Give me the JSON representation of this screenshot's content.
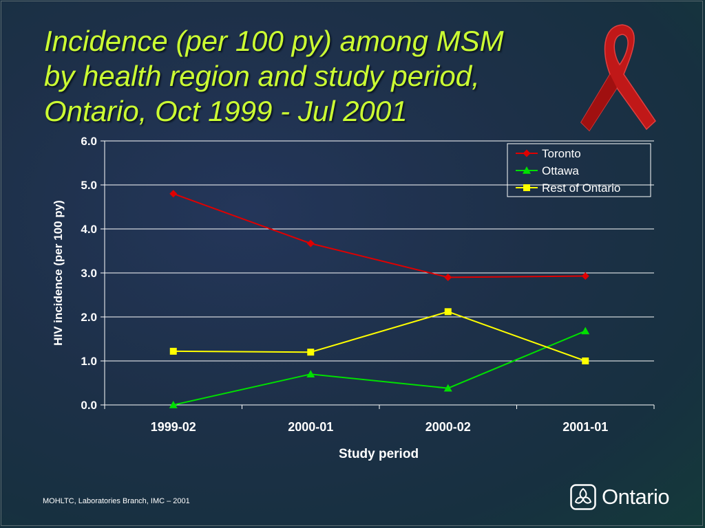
{
  "title_lines": [
    "Incidence (per 100 py) among MSM",
    "by health region and study period,",
    "Ontario, Oct 1999 - Jul 2001"
  ],
  "footer": "MOHLTC, Laboratories Branch, IMC – 2001",
  "logo": {
    "text": "Ontario",
    "icon": "trillium-icon"
  },
  "ribbon_icon": "red-ribbon-icon",
  "colors": {
    "title": "#ccff33",
    "toronto": "#e00000",
    "ottawa": "#00e000",
    "rest": "#ffff00",
    "axis": "#ffffff"
  },
  "chart_data": {
    "type": "line",
    "categories": [
      "1999-02",
      "2000-01",
      "2000-02",
      "2001-01"
    ],
    "series": [
      {
        "name": "Toronto",
        "marker": "diamond",
        "color": "#e00000",
        "values": [
          4.8,
          3.67,
          2.9,
          2.93
        ]
      },
      {
        "name": "Ottawa",
        "marker": "triangle",
        "color": "#00e000",
        "values": [
          0.0,
          0.7,
          0.38,
          1.68
        ]
      },
      {
        "name": "Rest of Ontario",
        "marker": "square",
        "color": "#ffff00",
        "values": [
          1.22,
          1.2,
          2.12,
          1.0
        ]
      }
    ],
    "xlabel": "Study period",
    "ylabel": "HIV incidence (per 100 py)",
    "ylim": [
      0,
      6
    ],
    "yticks": [
      "0.0",
      "1.0",
      "2.0",
      "3.0",
      "4.0",
      "5.0",
      "6.0"
    ],
    "grid": true,
    "legend_position": "top-right"
  }
}
